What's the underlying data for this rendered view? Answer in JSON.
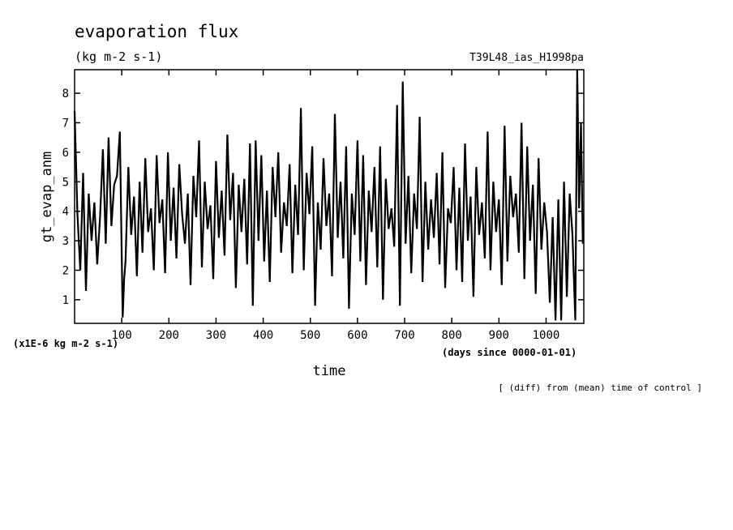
{
  "header": {
    "title": "evaporation flux",
    "units": "(kg m-2 s-1)",
    "run_id": "T39L48_ias_H1998pa",
    "scale_note": "(x1E-6 kg m-2 s-1)",
    "time_units": "(days since 0000-01-01)",
    "footnote": "[ (diff) from (mean) time of control ]"
  },
  "chart_data": {
    "type": "line",
    "title": "evaporation flux",
    "xlabel": "time",
    "ylabel": "gt_evap_anm",
    "xlim": [
      0,
      1080
    ],
    "ylim": [
      0.2,
      8.8
    ],
    "x_ticks": [
      100,
      200,
      300,
      400,
      500,
      600,
      700,
      800,
      900,
      1000
    ],
    "y_ticks": [
      1,
      2,
      3,
      4,
      5,
      6,
      7,
      8
    ],
    "x_tick_labels": [
      "100",
      "200",
      "300",
      "400",
      "500",
      "600",
      "700",
      "800",
      "900",
      "1000"
    ],
    "y_tick_labels": [
      "1",
      "2",
      "3",
      "4",
      "5",
      "6",
      "7",
      "8"
    ],
    "grid": false,
    "series": [
      {
        "x": [
          0,
          6,
          12,
          18,
          24,
          30,
          36,
          42,
          48,
          54,
          60,
          66,
          72,
          78,
          84,
          90,
          96,
          102,
          105,
          108,
          114,
          120,
          126,
          132,
          138,
          144,
          150,
          156,
          162,
          168,
          174,
          180,
          186,
          192,
          198,
          204,
          210,
          216,
          222,
          228,
          234,
          240,
          246,
          252,
          258,
          264,
          270,
          276,
          282,
          288,
          294,
          300,
          306,
          312,
          318,
          324,
          330,
          336,
          342,
          348,
          354,
          360,
          366,
          372,
          378,
          384,
          390,
          396,
          402,
          408,
          414,
          420,
          426,
          432,
          438,
          444,
          450,
          456,
          462,
          468,
          474,
          480,
          486,
          492,
          498,
          504,
          510,
          516,
          522,
          528,
          534,
          540,
          546,
          552,
          558,
          564,
          570,
          576,
          582,
          588,
          594,
          600,
          606,
          612,
          618,
          624,
          630,
          636,
          642,
          648,
          654,
          660,
          666,
          672,
          678,
          684,
          690,
          696,
          702,
          708,
          714,
          720,
          726,
          732,
          738,
          744,
          750,
          756,
          762,
          768,
          774,
          780,
          786,
          792,
          798,
          804,
          810,
          816,
          822,
          828,
          834,
          840,
          846,
          852,
          858,
          864,
          870,
          876,
          882,
          888,
          894,
          900,
          906,
          912,
          918,
          924,
          930,
          936,
          942,
          948,
          954,
          960,
          966,
          972,
          978,
          984,
          990,
          996,
          1002,
          1008,
          1014,
          1020,
          1026,
          1032,
          1038,
          1044,
          1050,
          1056,
          1062,
          1066,
          1070,
          1074,
          1078
        ],
        "values": [
          7.4,
          3.9,
          2.0,
          5.3,
          1.3,
          4.6,
          3.0,
          4.3,
          2.2,
          3.8,
          6.1,
          2.9,
          6.5,
          3.5,
          4.9,
          5.2,
          6.7,
          0.4,
          1.7,
          2.3,
          5.5,
          3.2,
          4.5,
          1.8,
          5.0,
          2.6,
          5.8,
          3.3,
          4.1,
          2.0,
          5.9,
          3.6,
          4.4,
          1.9,
          6.0,
          3.0,
          4.8,
          2.4,
          5.6,
          3.9,
          2.9,
          4.6,
          1.5,
          5.2,
          3.8,
          6.4,
          2.1,
          5.0,
          3.4,
          4.2,
          1.7,
          5.7,
          3.1,
          4.7,
          2.5,
          6.6,
          3.7,
          5.3,
          1.4,
          4.9,
          3.3,
          5.1,
          2.2,
          6.3,
          0.8,
          6.4,
          3.0,
          5.9,
          2.3,
          4.7,
          1.6,
          5.5,
          3.8,
          6.0,
          2.6,
          4.3,
          3.5,
          5.6,
          1.9,
          4.9,
          3.2,
          7.5,
          2.0,
          5.3,
          3.9,
          6.2,
          0.8,
          4.3,
          2.7,
          5.8,
          3.5,
          4.6,
          1.8,
          7.3,
          3.1,
          5.0,
          2.4,
          6.2,
          0.7,
          4.6,
          3.2,
          6.4,
          2.3,
          5.9,
          1.5,
          4.7,
          3.3,
          5.5,
          2.1,
          6.2,
          1.0,
          5.1,
          3.4,
          4.1,
          2.8,
          7.6,
          0.8,
          8.4,
          2.9,
          5.2,
          1.9,
          4.6,
          3.4,
          7.2,
          1.6,
          5.0,
          2.7,
          4.4,
          3.1,
          5.3,
          2.2,
          6.0,
          1.4,
          4.1,
          3.6,
          5.5,
          2.0,
          4.8,
          1.6,
          6.3,
          3.0,
          4.5,
          1.1,
          5.5,
          3.2,
          4.3,
          2.4,
          6.7,
          2.0,
          5.0,
          3.3,
          4.4,
          1.5,
          6.9,
          2.3,
          5.2,
          3.8,
          4.6,
          2.6,
          7.0,
          1.7,
          6.2,
          3.0,
          4.9,
          1.2,
          5.8,
          2.7,
          4.3,
          3.3,
          0.9,
          3.8,
          0.3,
          4.4,
          0.3,
          5.0,
          1.1,
          4.6,
          3.2,
          0.3,
          8.8,
          4.1,
          7.0,
          2.9
        ]
      }
    ]
  }
}
